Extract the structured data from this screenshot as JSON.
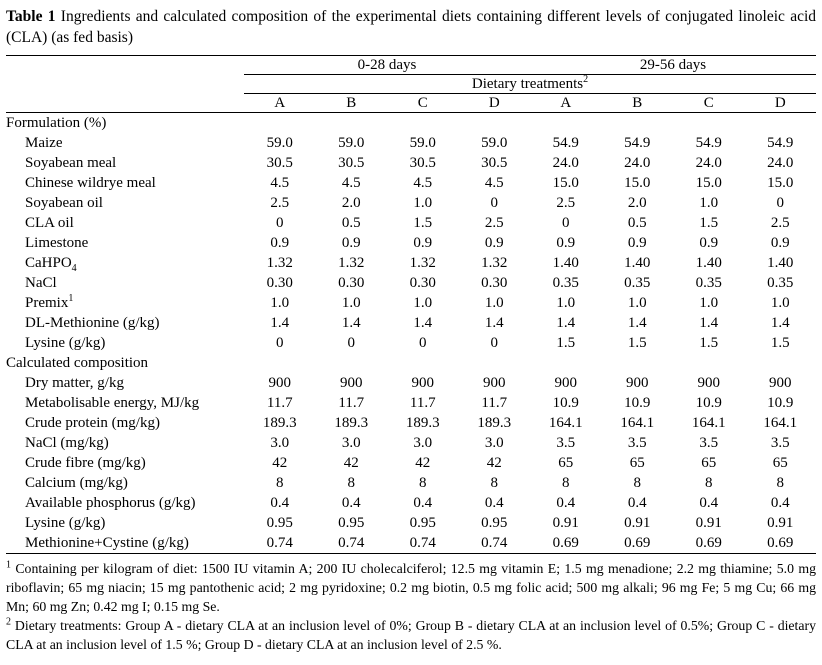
{
  "title": {
    "label": "Table 1",
    "text": "Ingredients and calculated composition of the experimental diets containing different levels of conjugated linoleic acid (CLA) (as fed basis)"
  },
  "table": {
    "period_headers": [
      "0-28 days",
      "29-56 days"
    ],
    "treatments_header": "Dietary treatments",
    "treatments_header_sup": "2",
    "column_letters": [
      "A",
      "B",
      "C",
      "D",
      "A",
      "B",
      "C",
      "D"
    ],
    "sections": [
      {
        "header": "Formulation (%)",
        "rows": [
          {
            "label": "Maize",
            "values": [
              "59.0",
              "59.0",
              "59.0",
              "59.0",
              "54.9",
              "54.9",
              "54.9",
              "54.9"
            ]
          },
          {
            "label": "Soyabean meal",
            "values": [
              "30.5",
              "30.5",
              "30.5",
              "30.5",
              "24.0",
              "24.0",
              "24.0",
              "24.0"
            ]
          },
          {
            "label": "Chinese wildrye meal",
            "values": [
              "4.5",
              "4.5",
              "4.5",
              "4.5",
              "15.0",
              "15.0",
              "15.0",
              "15.0"
            ]
          },
          {
            "label": "Soyabean oil",
            "values": [
              "2.5",
              "2.0",
              "1.0",
              "0",
              "2.5",
              "2.0",
              "1.0",
              "0"
            ]
          },
          {
            "label": "CLA oil",
            "values": [
              "0",
              "0.5",
              "1.5",
              "2.5",
              "0",
              "0.5",
              "1.5",
              "2.5"
            ]
          },
          {
            "label": "Limestone",
            "values": [
              "0.9",
              "0.9",
              "0.9",
              "0.9",
              "0.9",
              "0.9",
              "0.9",
              "0.9"
            ]
          },
          {
            "label": "CaHPO",
            "label_sub": "4",
            "values": [
              "1.32",
              "1.32",
              "1.32",
              "1.32",
              "1.40",
              "1.40",
              "1.40",
              "1.40"
            ]
          },
          {
            "label": "NaCl",
            "values": [
              "0.30",
              "0.30",
              "0.30",
              "0.30",
              "0.35",
              "0.35",
              "0.35",
              "0.35"
            ]
          },
          {
            "label": "Premix",
            "label_sup": "1",
            "values": [
              "1.0",
              "1.0",
              "1.0",
              "1.0",
              "1.0",
              "1.0",
              "1.0",
              "1.0"
            ]
          },
          {
            "label": "DL-Methionine (g/kg)",
            "values": [
              "1.4",
              "1.4",
              "1.4",
              "1.4",
              "1.4",
              "1.4",
              "1.4",
              "1.4"
            ]
          },
          {
            "label": "Lysine (g/kg)",
            "values": [
              "0",
              "0",
              "0",
              "0",
              "1.5",
              "1.5",
              "1.5",
              "1.5"
            ]
          }
        ]
      },
      {
        "header": "Calculated composition",
        "rows": [
          {
            "label": "Dry matter, g/kg",
            "values": [
              "900",
              "900",
              "900",
              "900",
              "900",
              "900",
              "900",
              "900"
            ]
          },
          {
            "label": "Metabolisable energy, MJ/kg",
            "values": [
              "11.7",
              "11.7",
              "11.7",
              "11.7",
              "10.9",
              "10.9",
              "10.9",
              "10.9"
            ]
          },
          {
            "label": "Crude protein (mg/kg)",
            "values": [
              "189.3",
              "189.3",
              "189.3",
              "189.3",
              "164.1",
              "164.1",
              "164.1",
              "164.1"
            ]
          },
          {
            "label": "NaCl (mg/kg)",
            "values": [
              "3.0",
              "3.0",
              "3.0",
              "3.0",
              "3.5",
              "3.5",
              "3.5",
              "3.5"
            ]
          },
          {
            "label": "Crude fibre (mg/kg)",
            "values": [
              "42",
              "42",
              "42",
              "42",
              "65",
              "65",
              "65",
              "65"
            ]
          },
          {
            "label": "Calcium (mg/kg)",
            "values": [
              "8",
              "8",
              "8",
              "8",
              "8",
              "8",
              "8",
              "8"
            ]
          },
          {
            "label": "Available phosphorus (g/kg)",
            "values": [
              "0.4",
              "0.4",
              "0.4",
              "0.4",
              "0.4",
              "0.4",
              "0.4",
              "0.4"
            ]
          },
          {
            "label": "Lysine (g/kg)",
            "values": [
              "0.95",
              "0.95",
              "0.95",
              "0.95",
              "0.91",
              "0.91",
              "0.91",
              "0.91"
            ]
          },
          {
            "label": "Methionine+Cystine (g/kg)",
            "values": [
              "0.74",
              "0.74",
              "0.74",
              "0.74",
              "0.69",
              "0.69",
              "0.69",
              "0.69"
            ]
          }
        ]
      }
    ]
  },
  "footnotes": [
    {
      "sup": "1",
      "text": "Containing per kilogram of diet: 1500 IU vitamin A; 200 IU cholecalciferol; 12.5 mg vitamin E; 1.5 mg menadione; 2.2 mg thiamine; 5.0 mg riboflavin; 65 mg niacin; 15 mg pantothenic acid; 2 mg pyridoxine; 0.2 mg biotin, 0.5 mg folic acid; 500 mg alkali; 96 mg Fe; 5 mg Cu; 66 mg Mn; 60 mg Zn; 0.42 mg I; 0.15 mg Se."
    },
    {
      "sup": "2",
      "text": "Dietary treatments: Group A - dietary CLA at an inclusion level of 0%; Group B - dietary CLA at an inclusion level of 0.5%; Group C - dietary CLA at an inclusion level of 1.5 %; Group D - dietary CLA at an inclusion level of 2.5 %."
    }
  ]
}
